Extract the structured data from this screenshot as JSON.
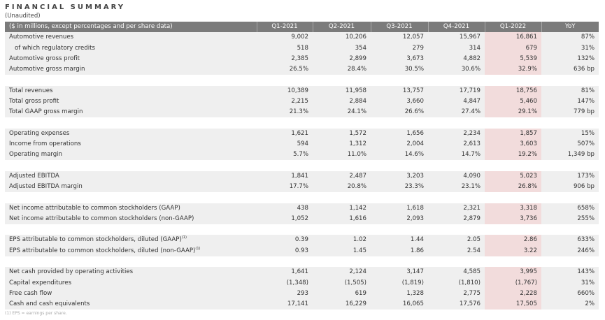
{
  "title": "FINANCIAL SUMMARY",
  "subtitle": "(Unaudited)",
  "header": [
    "($ in millions, except percentages and per share data)",
    "Q1-2021",
    "Q2-2021",
    "Q3-2021",
    "Q4-2021",
    "Q1-2022",
    "YoY"
  ],
  "highlight_color": "#f2dcdc",
  "groups": [
    [
      {
        "label": "Automotive revenues",
        "values": [
          "9,002",
          "10,206",
          "12,057",
          "15,967",
          "16,861",
          "87%"
        ]
      },
      {
        "label": "of which regulatory credits",
        "indent": true,
        "values": [
          "518",
          "354",
          "279",
          "314",
          "679",
          "31%"
        ]
      },
      {
        "label": "Automotive gross profit",
        "values": [
          "2,385",
          "2,899",
          "3,673",
          "4,882",
          "5,539",
          "132%"
        ]
      },
      {
        "label": "Automotive gross margin",
        "values": [
          "26.5%",
          "28.4%",
          "30.5%",
          "30.6%",
          "32.9%",
          "636 bp"
        ]
      }
    ],
    [
      {
        "label": "Total revenues",
        "values": [
          "10,389",
          "11,958",
          "13,757",
          "17,719",
          "18,756",
          "81%"
        ]
      },
      {
        "label": "Total gross profit",
        "values": [
          "2,215",
          "2,884",
          "3,660",
          "4,847",
          "5,460",
          "147%"
        ]
      },
      {
        "label": "Total GAAP gross margin",
        "values": [
          "21.3%",
          "24.1%",
          "26.6%",
          "27.4%",
          "29.1%",
          "779 bp"
        ]
      }
    ],
    [
      {
        "label": "Operating expenses",
        "values": [
          "1,621",
          "1,572",
          "1,656",
          "2,234",
          "1,857",
          "15%"
        ]
      },
      {
        "label": "Income from operations",
        "values": [
          "594",
          "1,312",
          "2,004",
          "2,613",
          "3,603",
          "507%"
        ]
      },
      {
        "label": "Operating margin",
        "values": [
          "5.7%",
          "11.0%",
          "14.6%",
          "14.7%",
          "19.2%",
          "1,349 bp"
        ]
      }
    ],
    [
      {
        "label": "Adjusted EBITDA",
        "values": [
          "1,841",
          "2,487",
          "3,203",
          "4,090",
          "5,023",
          "173%"
        ]
      },
      {
        "label": "Adjusted EBITDA margin",
        "values": [
          "17.7%",
          "20.8%",
          "23.3%",
          "23.1%",
          "26.8%",
          "906 bp"
        ]
      }
    ],
    [
      {
        "label": "Net income attributable to common stockholders (GAAP)",
        "values": [
          "438",
          "1,142",
          "1,618",
          "2,321",
          "3,318",
          "658%"
        ]
      },
      {
        "label": "Net income attributable to common stockholders (non-GAAP)",
        "values": [
          "1,052",
          "1,616",
          "2,093",
          "2,879",
          "3,736",
          "255%"
        ]
      }
    ],
    [
      {
        "label": "EPS attributable to common stockholders, diluted (GAAP)",
        "sup": "(1)",
        "values": [
          "0.39",
          "1.02",
          "1.44",
          "2.05",
          "2.86",
          "633%"
        ]
      },
      {
        "label": "EPS attributable to common stockholders, diluted (non-GAAP)",
        "sup": "(1)",
        "values": [
          "0.93",
          "1.45",
          "1.86",
          "2.54",
          "3.22",
          "246%"
        ]
      }
    ],
    [
      {
        "label": "Net cash provided by operating activities",
        "values": [
          "1,641",
          "2,124",
          "3,147",
          "4,585",
          "3,995",
          "143%"
        ]
      },
      {
        "label": "Capital expenditures",
        "values": [
          "(1,348)",
          "(1,505)",
          "(1,819)",
          "(1,810)",
          "(1,767)",
          "31%"
        ]
      },
      {
        "label": "Free cash flow",
        "values": [
          "293",
          "619",
          "1,328",
          "2,775",
          "2,228",
          "660%"
        ]
      },
      {
        "label": "Cash and cash equivalents",
        "values": [
          "17,141",
          "16,229",
          "16,065",
          "17,576",
          "17,505",
          "2%"
        ]
      }
    ]
  ],
  "footnote": "(1) EPS = earnings per share."
}
